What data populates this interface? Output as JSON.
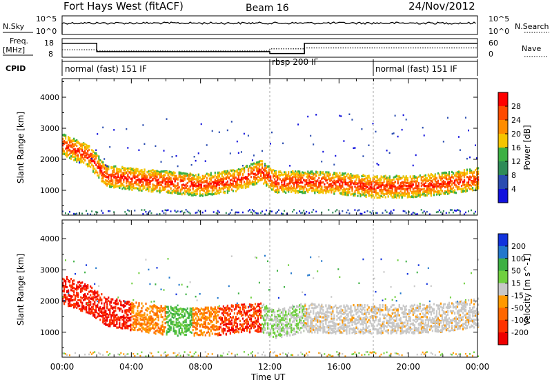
{
  "header": {
    "title": "Fort Hays West (fitACF)",
    "beam": "Beam 16",
    "date": "24/Nov/2012"
  },
  "labels": {
    "nsky": "N.Sky",
    "nsearch": "N.Search",
    "freq": "Freq.",
    "freq_unit": "[MHz]",
    "nave": "Nave",
    "cpid": "CPID",
    "nsky_tick_top": "10^5",
    "nsky_tick_bottom": "10^0"
  },
  "cpid_segments": [
    {
      "label": "normal (fast) 151 IF",
      "start": 0
    },
    {
      "label": "rbsp 200 IF",
      "start": 12
    },
    {
      "label": "normal (fast) 151 IF",
      "start": 18
    }
  ],
  "freq_panel": {
    "left_ticks": [
      "18",
      "8"
    ],
    "right_ticks": [
      "60",
      "0"
    ],
    "freq_series": [
      [
        0,
        15.5
      ],
      [
        2,
        15.5
      ],
      [
        2,
        11
      ],
      [
        12,
        11
      ],
      [
        12,
        10
      ],
      [
        14,
        10
      ],
      [
        14,
        15.5
      ],
      [
        24,
        15.5
      ]
    ],
    "nave_series": [
      [
        0,
        24
      ],
      [
        2,
        24
      ],
      [
        2,
        20
      ],
      [
        12,
        20
      ],
      [
        12,
        27
      ],
      [
        14,
        27
      ],
      [
        14,
        30
      ],
      [
        24,
        30
      ]
    ]
  },
  "chart_data": [
    {
      "type": "heatmap",
      "title": "Power",
      "xlabel": "",
      "ylabel": "Slant Range [km]",
      "x_ticks": [
        "00:00",
        "04:00",
        "08:00",
        "12:00",
        "16:00",
        "20:00",
        "00:00"
      ],
      "y_ticks": [
        1000,
        2000,
        3000,
        4000
      ],
      "ylim": [
        200,
        4600
      ],
      "colorbar": {
        "label": "Power [dB]",
        "ticks": [
          "28",
          "24",
          "20",
          "16",
          "12",
          "8",
          "4"
        ],
        "colors": [
          "#ff0000",
          "#ff4a00",
          "#ff8c00",
          "#f5c400",
          "#3cb043",
          "#2e8b57",
          "#2a4cb0",
          "#1111dd"
        ]
      },
      "bands": [
        {
          "name": "main",
          "center": [
            [
              0,
              2500
            ],
            [
              1.5,
              2150
            ],
            [
              2.5,
              1500
            ],
            [
              4,
              1400
            ],
            [
              6,
              1300
            ],
            [
              8,
              1200
            ],
            [
              10,
              1350
            ],
            [
              11.5,
              1650
            ],
            [
              12.3,
              1300
            ],
            [
              14,
              1300
            ],
            [
              16,
              1250
            ],
            [
              18,
              1150
            ],
            [
              20,
              1150
            ],
            [
              22,
              1250
            ],
            [
              24,
              1400
            ]
          ],
          "width": 320
        }
      ]
    },
    {
      "type": "heatmap",
      "title": "Velocity",
      "xlabel": "Time UT",
      "ylabel": "Slant Range [km]",
      "x_ticks": [
        "00:00",
        "04:00",
        "08:00",
        "12:00",
        "16:00",
        "20:00",
        "00:00"
      ],
      "y_ticks": [
        1000,
        2000,
        3000,
        4000
      ],
      "ylim": [
        200,
        4600
      ],
      "colorbar": {
        "label": "Velocity [m s^-1]",
        "ticks": [
          "200",
          "100",
          "50",
          "15",
          "-15",
          "-50",
          "-100",
          "-200"
        ],
        "colors": [
          "#1133dd",
          "#2277cc",
          "#3cb043",
          "#6fcf3f",
          "#c8c8c8",
          "#ff9900",
          "#ff6600",
          "#ff3300",
          "#ee0000"
        ]
      },
      "bands": [
        {
          "name": "main",
          "center": [
            [
              0,
              2400
            ],
            [
              1.5,
              2100
            ],
            [
              2.5,
              1700
            ],
            [
              4,
              1550
            ],
            [
              6,
              1400
            ],
            [
              8,
              1350
            ],
            [
              10,
              1450
            ],
            [
              11.5,
              1500
            ],
            [
              12.3,
              1300
            ],
            [
              14,
              1500
            ],
            [
              16,
              1450
            ],
            [
              18,
              1450
            ],
            [
              20,
              1450
            ],
            [
              22,
              1500
            ],
            [
              24,
              1650
            ]
          ],
          "width": 420
        }
      ]
    }
  ]
}
